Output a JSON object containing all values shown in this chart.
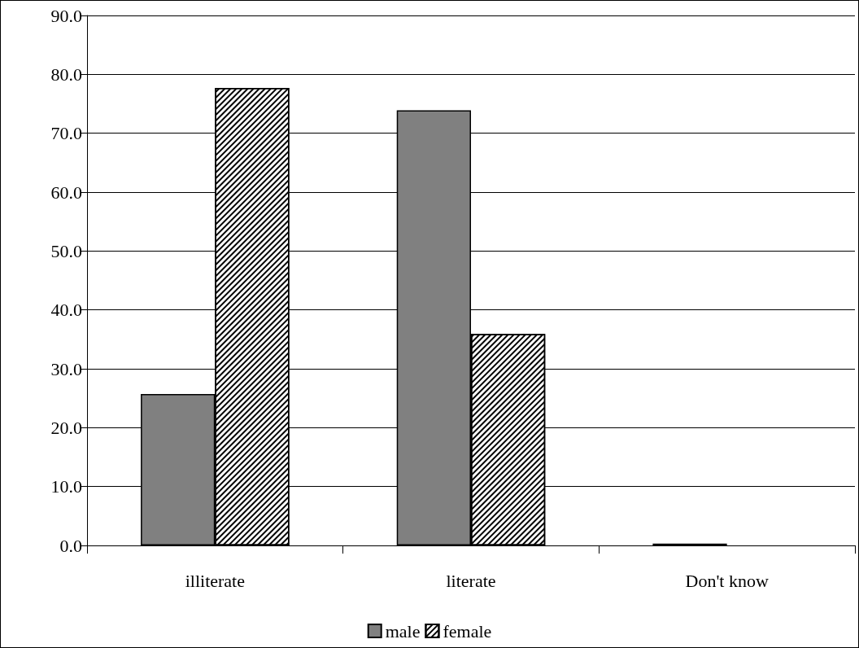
{
  "chart_data": {
    "type": "bar",
    "categories": [
      "illiterate",
      "literate",
      "Don't know"
    ],
    "series": [
      {
        "name": "male",
        "color": "#808080",
        "values": [
          25.7,
          73.9,
          0.3
        ]
      },
      {
        "name": "female",
        "color": "#ffffff",
        "values": [
          77.7,
          35.9,
          0
        ]
      }
    ],
    "ylim": [
      0,
      90
    ],
    "yticks": [
      {
        "value": 0,
        "label": "0.0"
      },
      {
        "value": 10,
        "label": "10.0"
      },
      {
        "value": 20,
        "label": "20.0"
      },
      {
        "value": 30,
        "label": "30.0"
      },
      {
        "value": 40,
        "label": "40.0"
      },
      {
        "value": 50,
        "label": "50.0"
      },
      {
        "value": 60,
        "label": "60.0"
      },
      {
        "value": 70,
        "label": "70.0"
      },
      {
        "value": 80,
        "label": "80.0"
      },
      {
        "value": 90,
        "label": "90.0"
      }
    ],
    "grid": "y",
    "legend": "bottom"
  }
}
